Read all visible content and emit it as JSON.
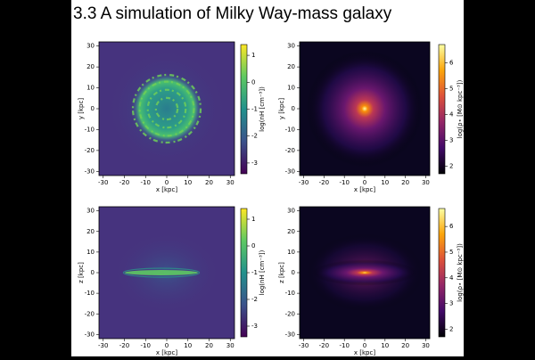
{
  "title": "3.3  A simulation of Milky Way-mass galaxy",
  "chart_data": [
    {
      "type": "heatmap",
      "colormap": "viridis",
      "xlabel": "x [kpc]",
      "ylabel": "y [kpc]",
      "xlim": [
        -32,
        32
      ],
      "ylim": [
        -32,
        32
      ],
      "xticks": [
        -30,
        -20,
        -10,
        0,
        10,
        20,
        30
      ],
      "yticks": [
        -30,
        -20,
        -10,
        0,
        10,
        20,
        30
      ],
      "colorbar": {
        "label": "log(nH [cm⁻³])",
        "lim": [
          -3.4,
          1.4
        ],
        "ticks": [
          -3,
          -2,
          -1,
          0,
          1
        ]
      }
    },
    {
      "type": "heatmap",
      "colormap": "inferno",
      "xlabel": "x [kpc]",
      "ylabel": "y [kpc]",
      "xlim": [
        -32,
        32
      ],
      "ylim": [
        -32,
        32
      ],
      "xticks": [
        -30,
        -20,
        -10,
        0,
        10,
        20,
        30
      ],
      "yticks": [
        -30,
        -20,
        -10,
        0,
        10,
        20,
        30
      ],
      "colorbar": {
        "label": "log(ρ⋆ [M⊙ kpc⁻³])",
        "lim": [
          1.7,
          6.7
        ],
        "ticks": [
          2,
          3,
          4,
          5,
          6
        ]
      }
    },
    {
      "type": "heatmap",
      "colormap": "viridis",
      "xlabel": "x [kpc]",
      "ylabel": "z [kpc]",
      "xlim": [
        -32,
        32
      ],
      "ylim": [
        -32,
        32
      ],
      "xticks": [
        -30,
        -20,
        -10,
        0,
        10,
        20,
        30
      ],
      "yticks": [
        -30,
        -20,
        -10,
        0,
        10,
        20,
        30
      ],
      "colorbar": {
        "label": "log(nH [cm⁻³])",
        "lim": [
          -3.4,
          1.4
        ],
        "ticks": [
          -3,
          -2,
          -1,
          0,
          1
        ]
      }
    },
    {
      "type": "heatmap",
      "colormap": "inferno",
      "xlabel": "x [kpc]",
      "ylabel": "z [kpc]",
      "xlim": [
        -32,
        32
      ],
      "ylim": [
        -32,
        32
      ],
      "xticks": [
        -30,
        -20,
        -10,
        0,
        10,
        20,
        30
      ],
      "yticks": [
        -30,
        -20,
        -10,
        0,
        10,
        20,
        30
      ],
      "colorbar": {
        "label": "log(ρ⋆ [M⊙ kpc⁻³])",
        "lim": [
          1.7,
          6.7
        ],
        "ticks": [
          2,
          3,
          4,
          5,
          6
        ]
      }
    }
  ]
}
